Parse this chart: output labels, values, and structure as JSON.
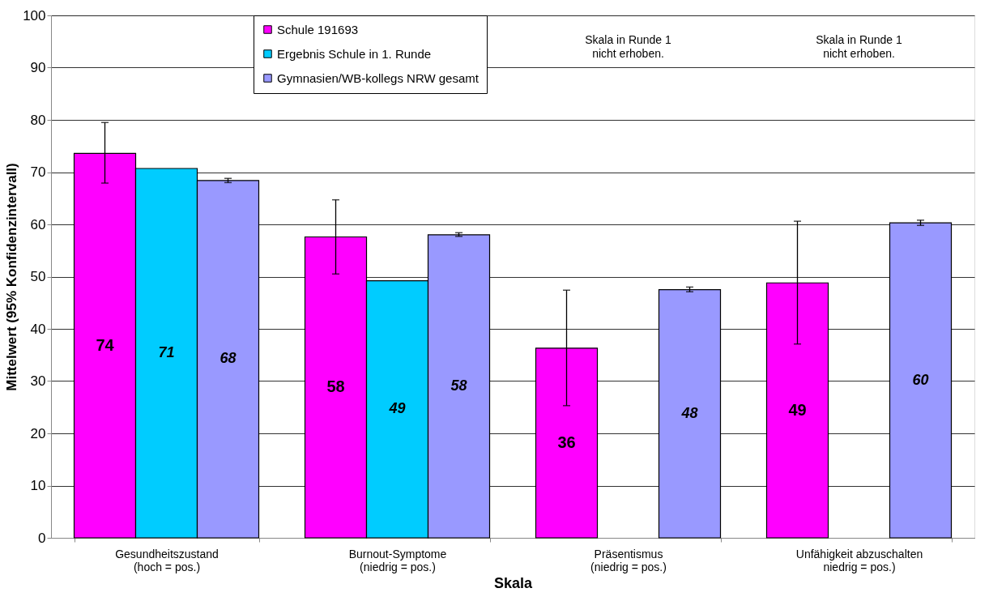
{
  "chart_data": {
    "type": "bar",
    "xlabel": "Skala",
    "ylabel": "Mittelwert (95% Konfidenzintervall)",
    "categories": [
      "Gesundheitszustand\n(hoch = pos.)",
      "Burnout-Symptome\n(niedrig = pos.)",
      "Präsentismus\n(niedrig = pos.)",
      "Unfähigkeit abzuschalten\nniedrig = pos.)"
    ],
    "series": [
      {
        "name": "Schule 191693",
        "color": "#ff00ff",
        "values": [
          73.6,
          57.6,
          36.3,
          48.8
        ],
        "errors": [
          [
            67.9,
            79.5
          ],
          [
            50.5,
            64.7
          ],
          [
            25.3,
            47.4
          ],
          [
            37.1,
            60.6
          ]
        ],
        "value_labels": [
          "74",
          "58",
          "36",
          "49"
        ]
      },
      {
        "name": "Ergebnis Schule in 1. Runde",
        "color": "#00ccff",
        "values": [
          70.7,
          49.2,
          null,
          null
        ],
        "value_labels": [
          "71",
          "49",
          null,
          null
        ]
      },
      {
        "name": "Gymnasien/WB-kollegs NRW gesamt",
        "color": "#9999ff",
        "values": [
          68.4,
          58.0,
          47.5,
          60.3
        ],
        "errors": [
          [
            68.0,
            68.8
          ],
          [
            57.7,
            58.4
          ],
          [
            47.1,
            48.0
          ],
          [
            59.8,
            60.8
          ]
        ],
        "value_labels": [
          "68",
          "58",
          "48",
          "60"
        ]
      }
    ],
    "annotations": [
      "Skala in Runde 1\nnicht erhoben.",
      "Skala in Runde 1\nnicht erhoben."
    ],
    "ylim": [
      0,
      100
    ],
    "yticks": [
      0,
      10,
      20,
      30,
      40,
      50,
      60,
      70,
      80,
      90,
      100
    ],
    "grid": "y",
    "legend": "top"
  }
}
